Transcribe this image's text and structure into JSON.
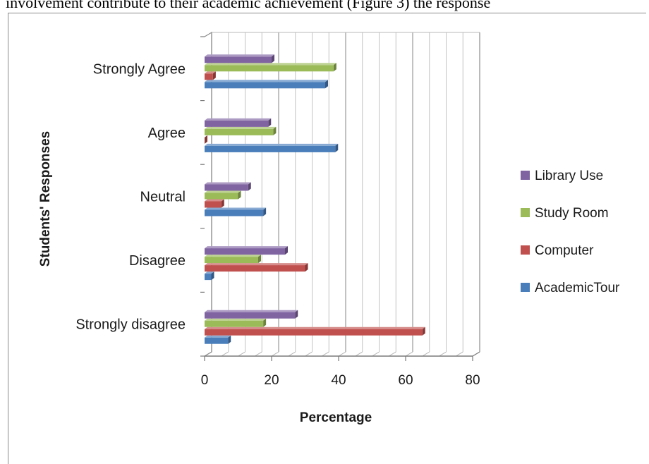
{
  "caption": "involvement contribute to their academic achievement (Figure 3) the response",
  "chart_data": {
    "type": "bar",
    "orientation": "horizontal",
    "categories": [
      "Strongly disagree",
      "Disagree",
      "Neutral",
      "Agree",
      "Strongly Agree"
    ],
    "series": [
      {
        "name": "AcademicTour",
        "color": "#4a7ebb",
        "values": [
          7,
          2,
          17.5,
          39,
          36
        ]
      },
      {
        "name": "Computer",
        "color": "#c0504d",
        "values": [
          65,
          30,
          5,
          0,
          2.5
        ]
      },
      {
        "name": "Study Room",
        "color": "#9bbb59",
        "values": [
          17.5,
          16,
          10,
          20.5,
          38.5
        ]
      },
      {
        "name": "Library Use",
        "color": "#8064a2",
        "values": [
          27,
          24,
          13,
          19,
          20
        ]
      }
    ],
    "xlabel": "Percentage",
    "ylabel": "Students' Responses",
    "xlim": [
      0,
      80
    ],
    "xticks": [
      "0",
      "20",
      "40",
      "60",
      "80"
    ],
    "legend_position": "right",
    "style": "3d-clustered-bar"
  }
}
